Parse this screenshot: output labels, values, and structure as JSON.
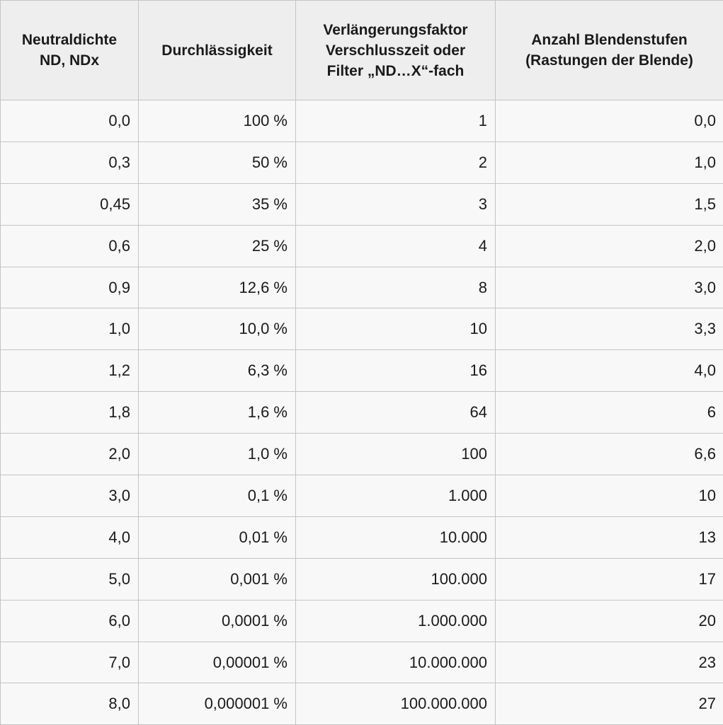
{
  "table": {
    "headers": [
      [
        "Neutraldichte",
        "ND, NDx"
      ],
      [
        "Durchlässigkeit"
      ],
      [
        "Verlängerungsfaktor",
        "Verschlusszeit oder",
        "Filter „ND…X“-fach"
      ],
      [
        "Anzahl Blendenstufen",
        "(Rastungen der Blende)"
      ]
    ],
    "rows": [
      [
        "0,0",
        "100 %",
        "1",
        "0,0"
      ],
      [
        "0,3",
        "50 %",
        "2",
        "1,0"
      ],
      [
        "0,45",
        "35 %",
        "3",
        "1,5"
      ],
      [
        "0,6",
        "25 %",
        "4",
        "2,0"
      ],
      [
        "0,9",
        "12,6 %",
        "8",
        "3,0"
      ],
      [
        "1,0",
        "10,0 %",
        "10",
        "3,3"
      ],
      [
        "1,2",
        "6,3 %",
        "16",
        "4,0"
      ],
      [
        "1,8",
        "1,6 %",
        "64",
        "6"
      ],
      [
        "2,0",
        "1,0 %",
        "100",
        "6,6"
      ],
      [
        "3,0",
        "0,1 %",
        "1.000",
        "10"
      ],
      [
        "4,0",
        "0,01 %",
        "10.000",
        "13"
      ],
      [
        "5,0",
        "0,001 %",
        "100.000",
        "17"
      ],
      [
        "6,0",
        "0,0001 %",
        "1.000.000",
        "20"
      ],
      [
        "7,0",
        "0,00001 %",
        "10.000.000",
        "23"
      ],
      [
        "8,0",
        "0,000001 %",
        "100.000.000",
        "27"
      ]
    ]
  }
}
